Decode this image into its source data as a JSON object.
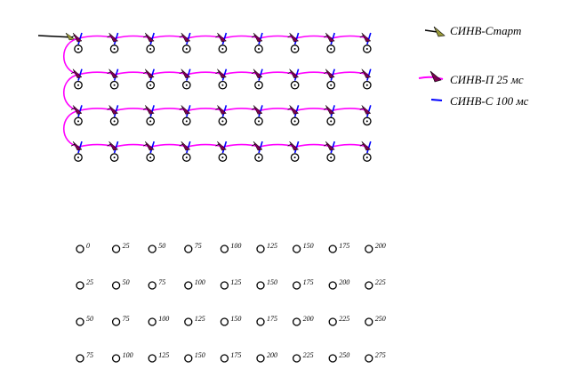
{
  "colors": {
    "background": "#ffffff",
    "start_line": "#000000",
    "start_detonator": "#9a9a3a",
    "line_p": "#ff00ff",
    "line_c": "#0000ff",
    "hole": "#000000",
    "detonator_body": "#7a0050"
  },
  "icons": {
    "hole": "circle-hole-icon",
    "detonator": "detonator-icon"
  },
  "legend": {
    "start": "СИНВ-Старт",
    "p25": "СИНВ-П 25 мс",
    "c100": "СИНВ-С 100 мс"
  },
  "scheme": {
    "rows": 4,
    "columns": 9
  },
  "delays": {
    "rows": [
      [
        "0",
        "25",
        "50",
        "75",
        "100",
        "125",
        "150",
        "175",
        "200"
      ],
      [
        "25",
        "50",
        "75",
        "100",
        "125",
        "150",
        "175",
        "200",
        "225"
      ],
      [
        "50",
        "75",
        "100",
        "125",
        "150",
        "175",
        "200",
        "225",
        "250"
      ],
      [
        "75",
        "100",
        "125",
        "150",
        "175",
        "200",
        "225",
        "250",
        "275"
      ]
    ]
  }
}
